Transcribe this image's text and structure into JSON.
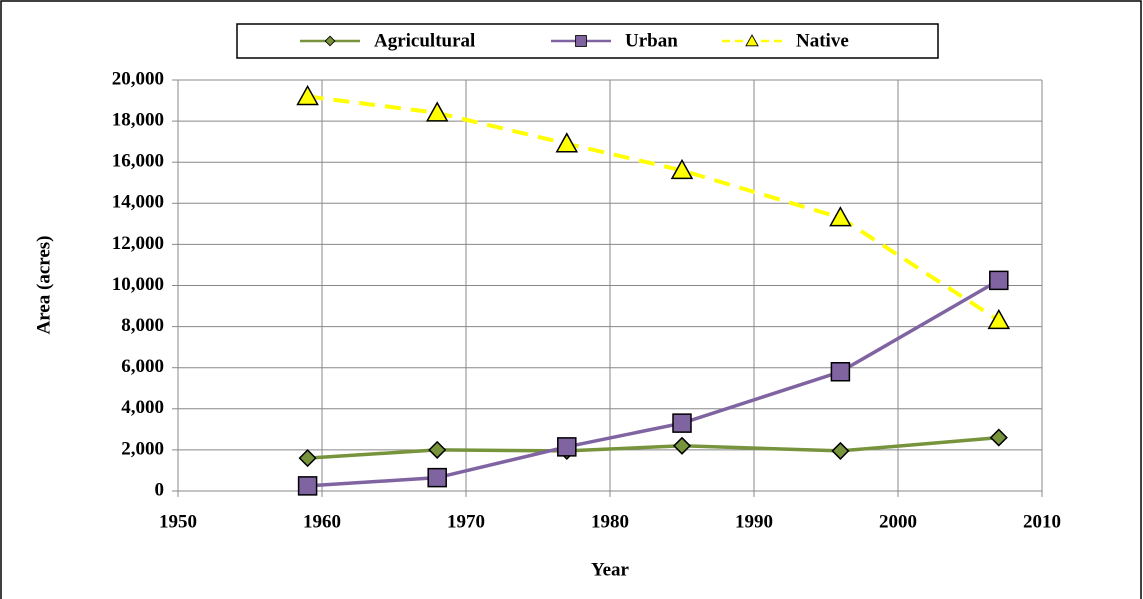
{
  "chart_data": {
    "type": "line",
    "x_label": "Year",
    "y_label": "Area (acres)",
    "x": [
      1959,
      1968,
      1977,
      1985,
      1996,
      2007
    ],
    "series": [
      {
        "name": "Agricultural",
        "color": "#77933c",
        "marker": "diamond",
        "dashed": false,
        "values": [
          1600,
          2000,
          1950,
          2200,
          1950,
          2600
        ]
      },
      {
        "name": "Urban",
        "color": "#8064a2",
        "marker": "square",
        "dashed": false,
        "values": [
          250,
          650,
          2150,
          3300,
          5800,
          10250
        ]
      },
      {
        "name": "Native",
        "color": "#ffff00",
        "marker": "triangle",
        "dashed": true,
        "values": [
          19200,
          18400,
          16900,
          15600,
          13300,
          8300
        ]
      }
    ],
    "xlim": [
      1950,
      2010
    ],
    "xticks": [
      1950,
      1960,
      1970,
      1980,
      1990,
      2000,
      2010
    ],
    "ylim": [
      0,
      20000
    ],
    "yticks": [
      0,
      {
        "value": 2000,
        "label": "2,000"
      },
      {
        "value": 4000,
        "label": "4,000"
      },
      {
        "value": 6000,
        "label": "6,000"
      },
      {
        "value": 8000,
        "label": "8,000"
      },
      {
        "value": 10000,
        "label": "10,000"
      },
      {
        "value": 12000,
        "label": "12,000"
      },
      {
        "value": 14000,
        "label": "14,000"
      },
      {
        "value": 16000,
        "label": "16,000"
      },
      {
        "value": 18000,
        "label": "18,000"
      },
      {
        "value": 20000,
        "label": "20,000"
      }
    ],
    "grid": true,
    "legend": "top"
  }
}
